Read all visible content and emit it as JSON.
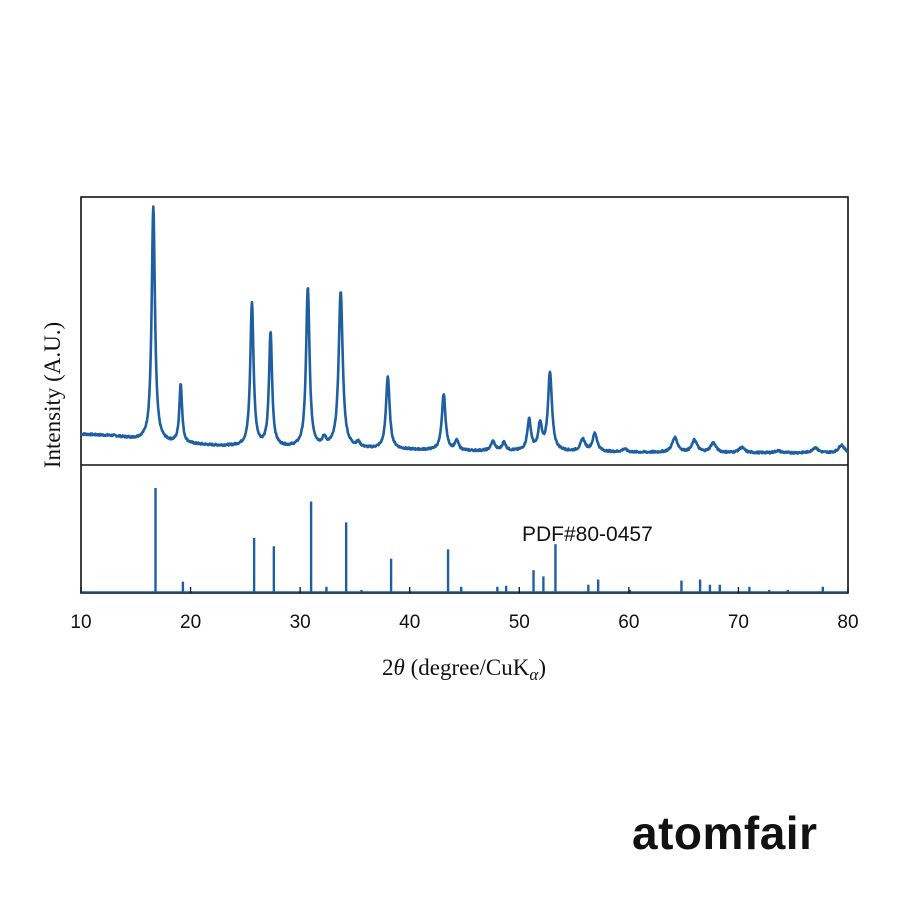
{
  "brand": {
    "logo_text": "atomfair"
  },
  "chart_data": {
    "type": "line",
    "xlabel_prefix": "2",
    "xlabel_theta": "θ",
    "xlabel_mid": " (degree/CuK",
    "xlabel_sub": "α",
    "xlabel_suffix": ")",
    "ylabel": "Intensity (A.U.)",
    "xlim": [
      10,
      80
    ],
    "x_ticks": [
      "10",
      "20",
      "30",
      "40",
      "50",
      "60",
      "70",
      "80"
    ],
    "x_tick_values": [
      10,
      20,
      30,
      40,
      50,
      60,
      70,
      80
    ],
    "grid": false,
    "colors": {
      "series": "#1f5fa0",
      "axes": "#111111"
    },
    "panels": [
      {
        "name": "measured-pattern",
        "kind": "line",
        "ylim": [
          0,
          100
        ],
        "baseline": [
          [
            10,
            11.5
          ],
          [
            13,
            10.8
          ],
          [
            15,
            9.5
          ],
          [
            18,
            8.2
          ],
          [
            22,
            7.2
          ],
          [
            26,
            6.6
          ],
          [
            30,
            6.3
          ],
          [
            35,
            6.0
          ],
          [
            40,
            5.6
          ],
          [
            45,
            5.2
          ],
          [
            50,
            5.1
          ],
          [
            55,
            4.9
          ],
          [
            60,
            4.7
          ],
          [
            65,
            4.6
          ],
          [
            70,
            4.5
          ],
          [
            75,
            4.5
          ],
          [
            80,
            4.5
          ]
        ],
        "peaks": [
          {
            "x": 16.6,
            "h": 87.5,
            "w": 0.18
          },
          {
            "x": 19.1,
            "h": 22,
            "w": 0.15
          },
          {
            "x": 25.6,
            "h": 53.5,
            "w": 0.18
          },
          {
            "x": 27.3,
            "h": 42.5,
            "w": 0.17
          },
          {
            "x": 30.7,
            "h": 59.5,
            "w": 0.19
          },
          {
            "x": 32.2,
            "h": 2.8,
            "w": 0.2
          },
          {
            "x": 33.7,
            "h": 58.5,
            "w": 0.22
          },
          {
            "x": 35.3,
            "h": 1.8,
            "w": 0.2
          },
          {
            "x": 38.0,
            "h": 27,
            "w": 0.2
          },
          {
            "x": 43.1,
            "h": 21,
            "w": 0.2
          },
          {
            "x": 44.3,
            "h": 3.5,
            "w": 0.2
          },
          {
            "x": 47.6,
            "h": 3.5,
            "w": 0.22
          },
          {
            "x": 48.6,
            "h": 3.2,
            "w": 0.2
          },
          {
            "x": 50.9,
            "h": 11.5,
            "w": 0.2
          },
          {
            "x": 51.9,
            "h": 9.5,
            "w": 0.2
          },
          {
            "x": 52.8,
            "h": 29,
            "w": 0.22
          },
          {
            "x": 55.8,
            "h": 4.5,
            "w": 0.25
          },
          {
            "x": 56.9,
            "h": 6.8,
            "w": 0.25
          },
          {
            "x": 59.6,
            "h": 1.2,
            "w": 0.25
          },
          {
            "x": 64.2,
            "h": 5.5,
            "w": 0.3
          },
          {
            "x": 66.0,
            "h": 4.6,
            "w": 0.28
          },
          {
            "x": 67.7,
            "h": 3.6,
            "w": 0.3
          },
          {
            "x": 70.3,
            "h": 2.0,
            "w": 0.3
          },
          {
            "x": 73.6,
            "h": 0.8,
            "w": 0.3
          },
          {
            "x": 77.0,
            "h": 2.0,
            "w": 0.3
          },
          {
            "x": 79.4,
            "h": 3.0,
            "w": 0.3
          }
        ]
      },
      {
        "name": "reference-pattern",
        "kind": "stick",
        "label": "PDF#80-0457",
        "ylim": [
          0,
          100
        ],
        "sticks": [
          {
            "x": 16.8,
            "y": 100
          },
          {
            "x": 19.3,
            "y": 10
          },
          {
            "x": 25.8,
            "y": 52
          },
          {
            "x": 27.6,
            "y": 44
          },
          {
            "x": 31.0,
            "y": 87
          },
          {
            "x": 32.4,
            "y": 5
          },
          {
            "x": 34.2,
            "y": 67
          },
          {
            "x": 35.6,
            "y": 2
          },
          {
            "x": 38.3,
            "y": 32
          },
          {
            "x": 43.5,
            "y": 41
          },
          {
            "x": 44.7,
            "y": 5
          },
          {
            "x": 48.0,
            "y": 5
          },
          {
            "x": 48.8,
            "y": 6
          },
          {
            "x": 51.3,
            "y": 21
          },
          {
            "x": 52.2,
            "y": 15
          },
          {
            "x": 53.3,
            "y": 46
          },
          {
            "x": 56.3,
            "y": 7
          },
          {
            "x": 57.2,
            "y": 12
          },
          {
            "x": 60.1,
            "y": 2
          },
          {
            "x": 64.8,
            "y": 11
          },
          {
            "x": 66.5,
            "y": 12
          },
          {
            "x": 67.4,
            "y": 7
          },
          {
            "x": 68.3,
            "y": 7
          },
          {
            "x": 71.0,
            "y": 5
          },
          {
            "x": 72.8,
            "y": 2
          },
          {
            "x": 74.5,
            "y": 2
          },
          {
            "x": 77.7,
            "y": 5
          }
        ]
      }
    ]
  }
}
